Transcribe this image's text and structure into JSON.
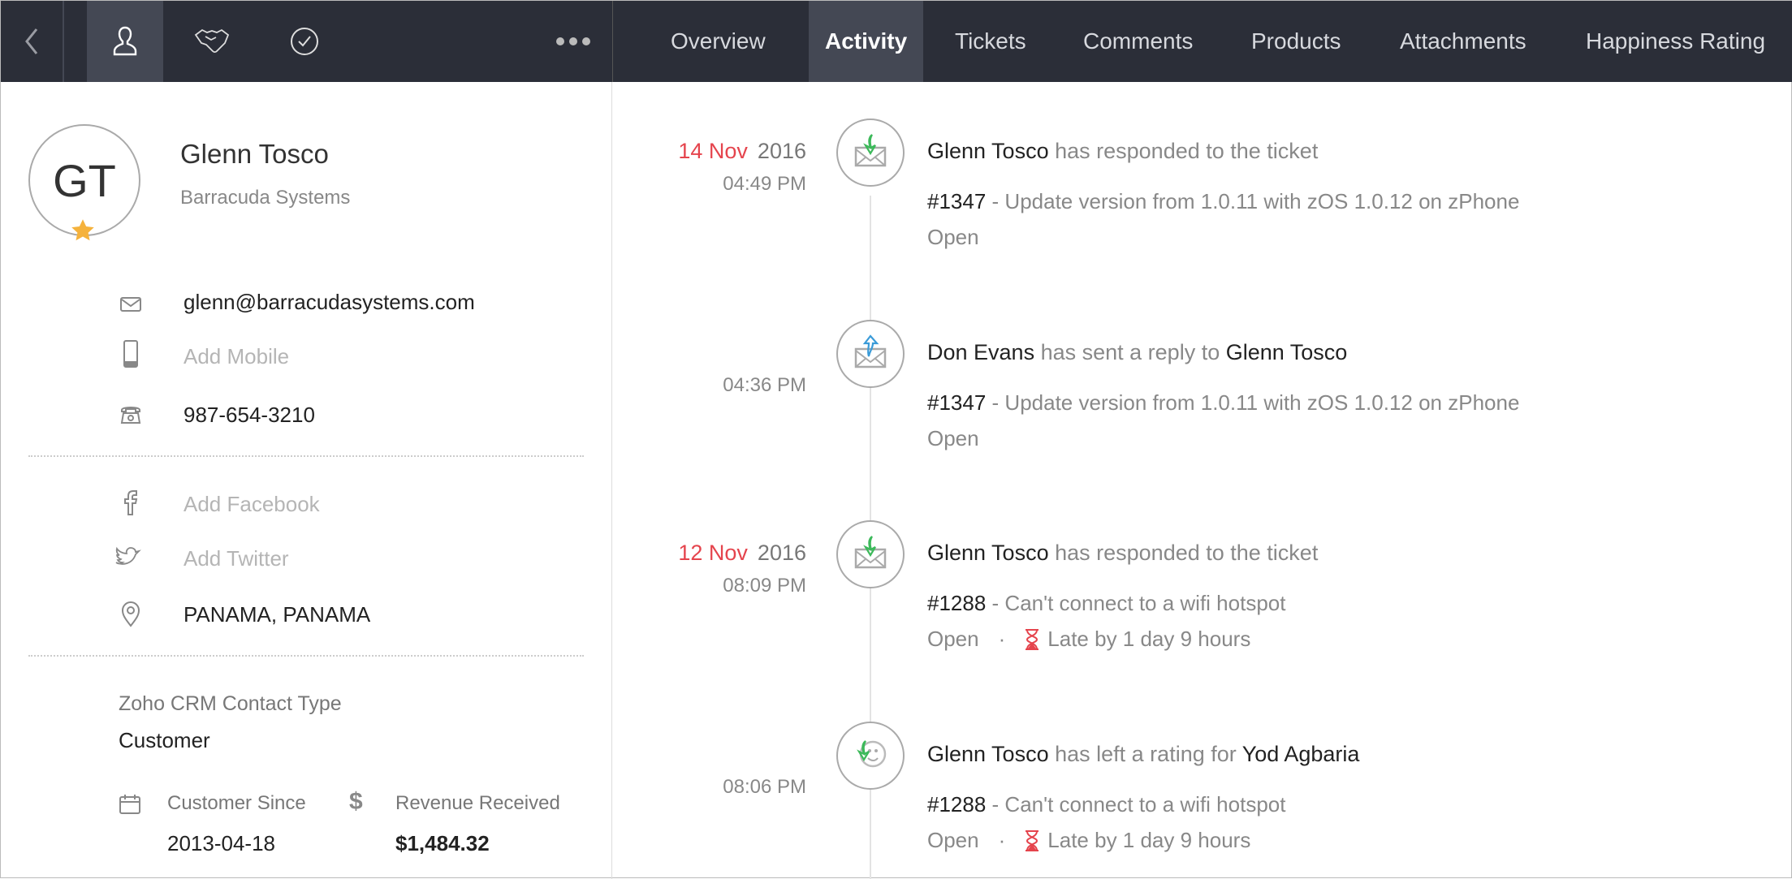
{
  "topbar": {
    "icons": [
      "back-chevron-icon",
      "contact-person-icon",
      "handshake-icon",
      "check-circle-icon",
      "more-dots-icon"
    ],
    "tabs": [
      {
        "label": "Overview"
      },
      {
        "label": "Activity",
        "active": true
      },
      {
        "label": "Tickets"
      },
      {
        "label": "Comments"
      },
      {
        "label": "Products"
      },
      {
        "label": "Attachments"
      },
      {
        "label": "Happiness Rating"
      }
    ]
  },
  "contact": {
    "initials": "GT",
    "name": "Glenn Tosco",
    "company": "Barracuda Systems",
    "starred": true,
    "email": "glenn@barracudasystems.com",
    "mobile_placeholder": "Add Mobile",
    "phone": "987-654-3210",
    "facebook_placeholder": "Add Facebook",
    "twitter_placeholder": "Add Twitter",
    "location": "PANAMA, PANAMA",
    "crm_type_label": "Zoho CRM Contact Type",
    "crm_type_value": "Customer",
    "customer_since_label": "Customer Since",
    "customer_since_value": "2013-04-18",
    "revenue_label": "Revenue Received",
    "revenue_value": "$1,484.32"
  },
  "colors": {
    "accent_red": "#e5444d",
    "topbar": "#2b2e38",
    "green": "#3cb95a",
    "blue": "#3a9bd8"
  },
  "activity": [
    {
      "day": "14 Nov",
      "year": "2016",
      "time": "04:49 PM",
      "icon": "mail-received-icon",
      "heading": [
        {
          "t": "Glenn Tosco",
          "s": true
        },
        {
          "t": " has responded to the ticket",
          "s": false
        }
      ],
      "ticket_id": "#1347",
      "ticket_title": " - Update version from 1.0.11 with zOS 1.0.12 on zPhone",
      "status": "Open"
    },
    {
      "time": "04:36 PM",
      "icon": "mail-sent-icon",
      "heading": [
        {
          "t": "Don Evans",
          "s": true
        },
        {
          "t": " has sent a reply to ",
          "s": false
        },
        {
          "t": "Glenn Tosco",
          "s": true
        }
      ],
      "ticket_id": "#1347",
      "ticket_title": " - Update version from 1.0.11 with zOS 1.0.12 on zPhone",
      "status": "Open"
    },
    {
      "day": "12 Nov",
      "year": "2016",
      "time": "08:09 PM",
      "icon": "mail-received-icon",
      "heading": [
        {
          "t": "Glenn Tosco",
          "s": true
        },
        {
          "t": " has responded to the ticket",
          "s": false
        }
      ],
      "ticket_id": "#1288",
      "ticket_title": " - Can't connect to a wifi hotspot",
      "status": "Open",
      "late": "Late by 1 day 9 hours"
    },
    {
      "time": "08:06 PM",
      "icon": "rating-smiley-icon",
      "heading": [
        {
          "t": "Glenn Tosco",
          "s": true
        },
        {
          "t": " has left a rating for ",
          "s": false
        },
        {
          "t": "Yod Agbaria",
          "s": true
        }
      ],
      "ticket_id": "#1288",
      "ticket_title": " - Can't connect to a wifi hotspot",
      "status": "Open",
      "late": "Late by 1 day 9 hours"
    }
  ]
}
